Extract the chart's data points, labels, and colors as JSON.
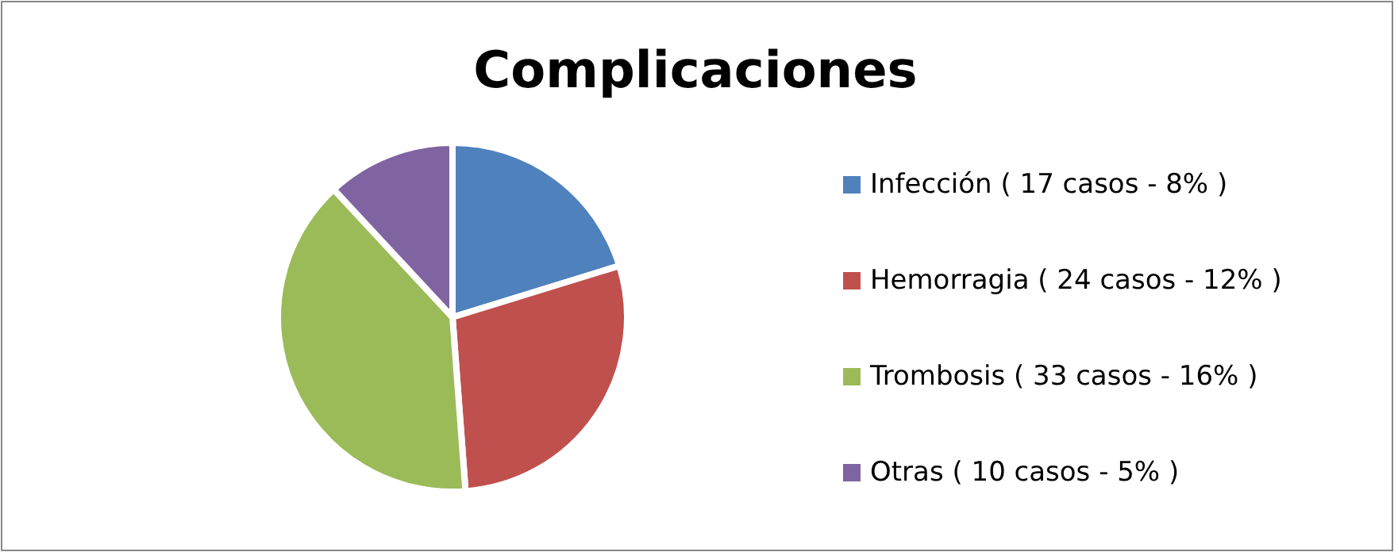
{
  "chart_data": {
    "type": "pie",
    "title": "Complicaciones",
    "categories": [
      "Infección ( 17 casos - 8% )",
      "Hemorragia ( 24 casos - 12% )",
      "Trombosis ( 33 casos - 16% )",
      "Otras ( 10 casos - 5% )"
    ],
    "values": [
      17,
      24,
      33,
      10
    ],
    "colors": [
      "#4f81bd",
      "#c0504d",
      "#9bbb59",
      "#8064a2"
    ],
    "legend": "right"
  }
}
